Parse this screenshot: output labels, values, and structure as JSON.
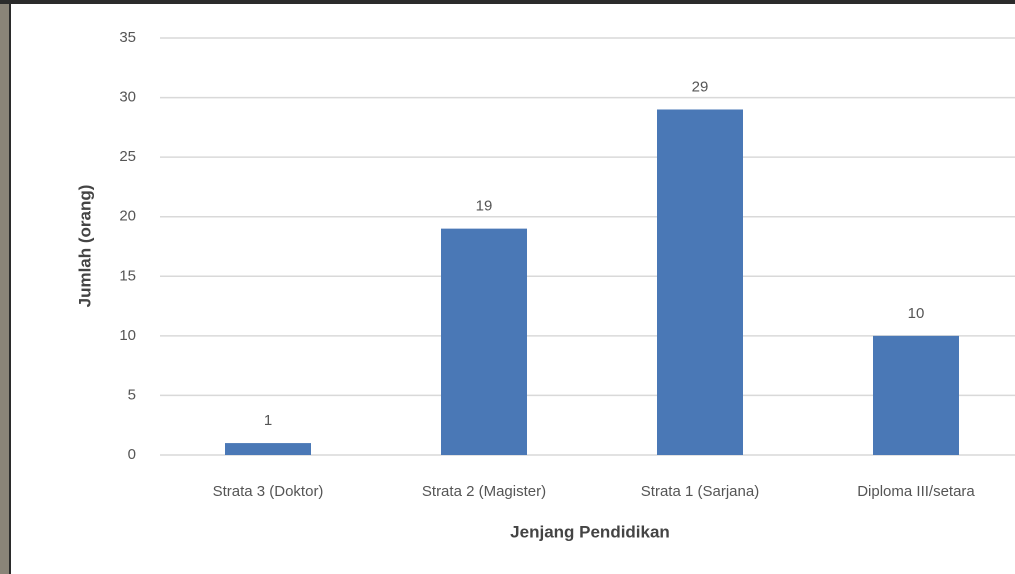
{
  "chart_data": {
    "type": "bar",
    "categories": [
      "Strata 3 (Doktor)",
      "Strata 2 (Magister)",
      "Strata 1 (Sarjana)",
      "Diploma III/setara"
    ],
    "values": [
      1,
      19,
      29,
      10
    ],
    "color": "#4a78b6",
    "ylim": [
      0,
      35
    ],
    "yticks": [
      0,
      5,
      10,
      15,
      20,
      25,
      30,
      35
    ],
    "grid": true,
    "xlabel": "Jenjang Pendidikan",
    "ylabel": "Jumlah (orang)"
  }
}
